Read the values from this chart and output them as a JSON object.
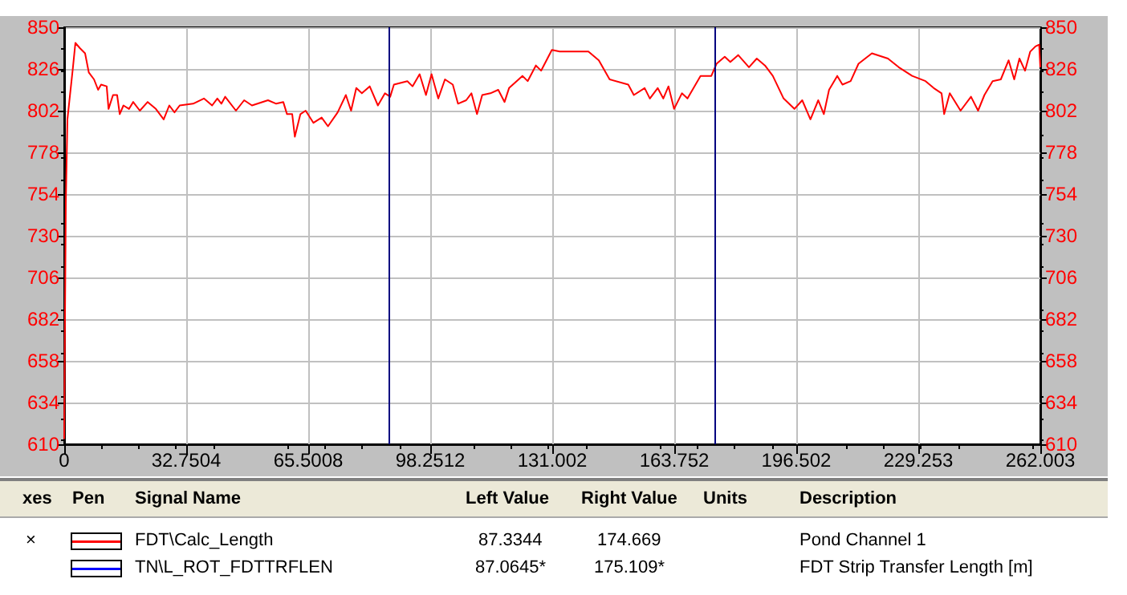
{
  "chart_data": {
    "type": "line",
    "x": [
      0,
      0.14,
      0.43,
      0.86,
      1.6,
      2.3,
      3.0,
      4.2,
      5.6,
      6.6,
      8.0,
      9.1,
      9.9,
      11.4,
      11.9,
      13.1,
      14.2,
      14.9,
      15.9,
      17.4,
      18.5,
      20.3,
      22.4,
      24.6,
      26.7,
      28.2,
      29.6,
      31.0,
      34.6,
      37.5,
      39.7,
      41.1,
      42.2,
      43.2,
      46.1,
      48.3,
      50.4,
      54.7,
      56.9,
      58.8,
      59.8,
      61.2,
      61.9,
      63.4,
      64.8,
      66.9,
      69.1,
      70.8,
      73.4,
      75.6,
      77.0,
      78.4,
      79.9,
      82.0,
      84.2,
      86.1,
      87.5,
      88.5,
      92.1,
      93.5,
      95.4,
      97.1,
      98.6,
      100.4,
      102.2,
      104.3,
      105.7,
      107.9,
      109.3,
      110.8,
      112.2,
      114.4,
      116.5,
      118.2,
      119.4,
      123.0,
      124.4,
      126.6,
      128.0,
      130.9,
      133.0,
      134.9,
      140.7,
      143.5,
      146.4,
      151.4,
      152.9,
      155.8,
      157.2,
      159.3,
      160.8,
      162.2,
      163.7,
      165.8,
      167.3,
      170.8,
      173.7,
      175.1,
      177.3,
      178.8,
      180.9,
      183.8,
      185.9,
      188.1,
      190.2,
      193.1,
      196.0,
      198.1,
      200.3,
      202.4,
      203.9,
      205.3,
      207.5,
      208.9,
      211.1,
      213.2,
      216.8,
      221.1,
      224.0,
      227.6,
      231.2,
      233.4,
      235.5,
      236.2,
      237.7,
      240.6,
      243.4,
      245.3,
      247.0,
      249.2,
      251.4,
      253.5,
      255.0,
      256.4,
      257.9,
      259.3,
      260.7,
      261.7,
      262.0
    ],
    "series": [
      {
        "color": "#ff0000",
        "values": [
          613,
          661,
          749,
          797,
          812,
          826,
          841,
          838,
          835,
          824,
          820,
          814,
          817,
          816,
          803,
          811,
          811,
          800,
          805,
          803,
          807,
          802,
          807,
          803,
          797,
          805,
          801,
          805,
          806,
          809,
          805,
          809,
          806,
          810,
          802,
          808,
          805,
          808,
          806,
          807,
          800,
          800,
          787,
          800,
          802,
          795,
          798,
          793,
          801,
          811,
          802,
          815,
          812,
          816,
          805,
          812,
          810,
          817,
          819,
          816,
          823,
          811,
          823,
          809,
          820,
          817,
          806,
          808,
          812,
          800,
          811,
          812,
          814,
          807,
          815,
          822,
          819,
          828,
          825,
          837,
          836,
          836,
          836,
          831,
          820,
          817,
          811,
          815,
          809,
          815,
          809,
          816,
          803,
          812,
          809,
          822,
          822,
          829,
          833,
          830,
          834,
          827,
          832,
          828,
          822,
          809,
          803,
          808,
          797,
          808,
          800,
          814,
          822,
          817,
          819,
          829,
          835,
          832,
          827,
          822,
          819,
          815,
          812,
          800,
          812,
          802,
          810,
          802,
          811,
          819,
          820,
          831,
          820,
          832,
          825,
          836,
          839,
          840,
          827
        ]
      }
    ],
    "xlim": [
      0,
      262.003
    ],
    "xticks": [
      0,
      32.7504,
      65.5008,
      98.2512,
      131.002,
      163.752,
      196.502,
      229.253,
      262.003
    ],
    "ylim": [
      610,
      850
    ],
    "yticks": [
      610,
      634,
      658,
      682,
      706,
      730,
      754,
      778,
      802,
      826,
      850
    ],
    "y2lim": [
      610,
      850
    ],
    "y2ticks": [
      610,
      634,
      658,
      682,
      706,
      730,
      754,
      778,
      802,
      826,
      850
    ],
    "grid": true,
    "marker": "none",
    "line_style": "solid",
    "ref_lines": [
      {
        "axis": "x",
        "value": 87.3344,
        "color": "#000080"
      },
      {
        "axis": "x",
        "value": 174.669,
        "color": "#000080"
      }
    ],
    "annotations": [
      "xes",
      "Pen",
      "Signal Name",
      "Left Value",
      "Right Value",
      "Units",
      "Description",
      "×",
      "FDT\\Calc_Length",
      "87.3344",
      "174.669",
      "Pond Channel 1",
      "TN\\L_ROT_FDTTRFLEN",
      "87.0645*",
      "175.109*",
      "FDT Strip Transfer Length [m]"
    ]
  }
}
